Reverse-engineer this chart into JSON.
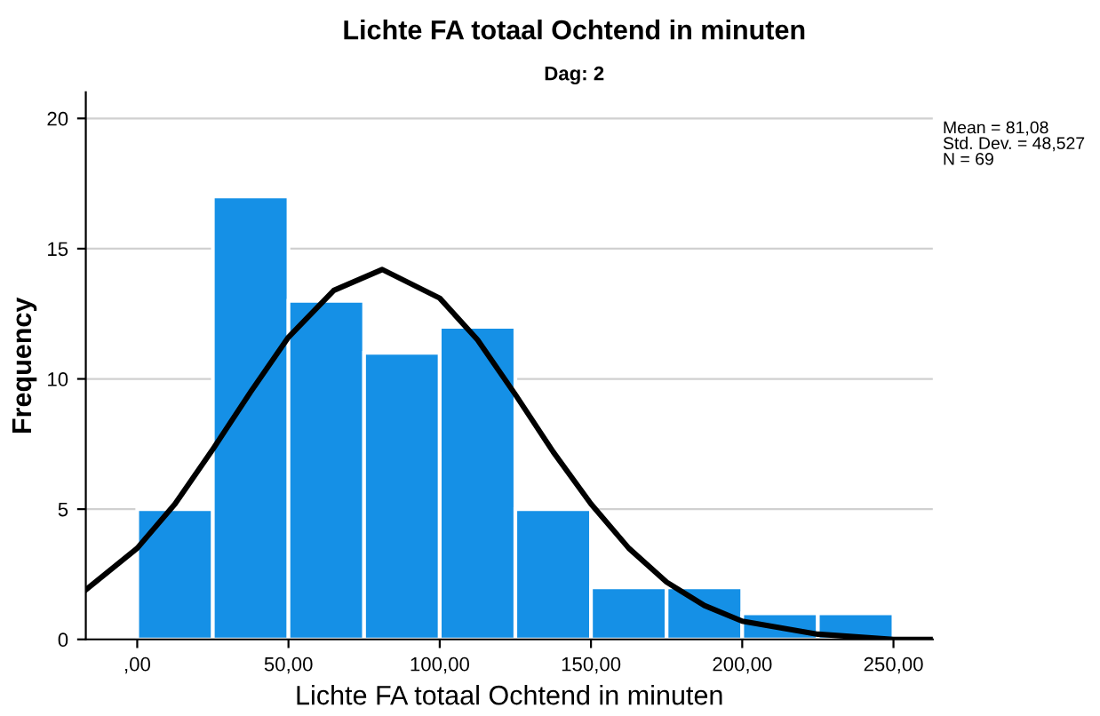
{
  "chart_data": {
    "type": "histogram",
    "title": "Lichte FA totaal Ochtend in minuten",
    "subtitle": "Dag: 2",
    "xlabel": "Lichte FA totaal Ochtend in minuten",
    "ylabel": "Frequency",
    "bins": [
      0,
      25,
      50,
      75,
      100,
      125,
      150,
      175,
      200,
      225,
      250
    ],
    "values": [
      5,
      17,
      13,
      11,
      12,
      5,
      2,
      2,
      1,
      1
    ],
    "color": "#1590e6",
    "series": [
      {
        "type": "line",
        "color": "#000000",
        "x": [
          -17,
          0,
          12.5,
          25,
          37.5,
          50,
          65,
          81,
          100,
          112.5,
          125,
          137.5,
          150,
          162.5,
          175,
          187.5,
          200,
          225,
          250,
          263
        ],
        "values": [
          1.9,
          3.5,
          5.2,
          7.3,
          9.5,
          11.6,
          13.4,
          14.2,
          13.1,
          11.5,
          9.4,
          7.2,
          5.2,
          3.5,
          2.2,
          1.3,
          0.7,
          0.2,
          0.0,
          0.0
        ]
      }
    ],
    "xlim": [
      -17,
      263
    ],
    "xticks": [
      {
        "value": 0,
        "label": ",00"
      },
      {
        "value": 50,
        "label": "50,00"
      },
      {
        "value": 100,
        "label": "100,00"
      },
      {
        "value": 150,
        "label": "150,00"
      },
      {
        "value": 200,
        "label": "200,00"
      },
      {
        "value": 250,
        "label": "250,00"
      }
    ],
    "ylim": [
      0,
      21
    ],
    "yticks": [
      0,
      5,
      10,
      15,
      20
    ],
    "grid": "y",
    "annotations": [
      "Mean = 81,08",
      "Std. Dev. = 48,527",
      "N = 69"
    ]
  }
}
